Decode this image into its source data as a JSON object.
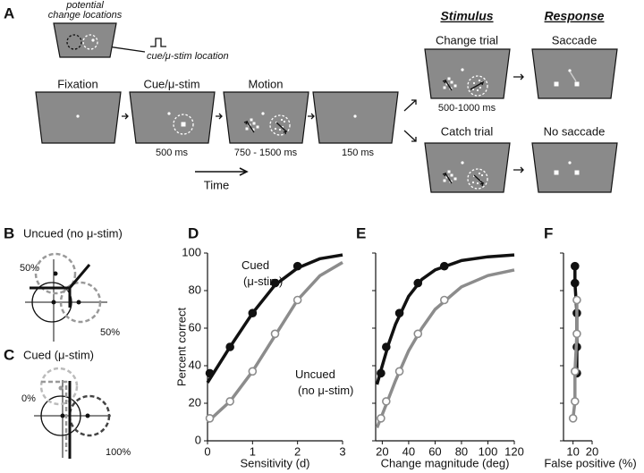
{
  "panel_a": {
    "label": "A",
    "inset_line_1": "potential",
    "inset_line_2": "change locations",
    "cue_label": "cue/μ-stim location",
    "epochs": [
      {
        "title": "Fixation"
      },
      {
        "title": "Cue/μ-stim",
        "duration": "500 ms"
      },
      {
        "title": "Motion",
        "duration": "750 - 1500 ms"
      },
      {
        "duration": "150 ms"
      }
    ],
    "time_label": "Time",
    "stimulus_header": "Stimulus",
    "response_header": "Response",
    "change_trial": {
      "stimulus": "Change trial",
      "duration": "500-1000 ms",
      "response": "Saccade"
    },
    "catch_trial": {
      "stimulus": "Catch trial",
      "response": "No saccade"
    }
  },
  "panel_b": {
    "label": "B",
    "title": "Uncued (no μ-stim)",
    "annotations": [
      "50%",
      "50%"
    ]
  },
  "panel_c": {
    "label": "C",
    "title": "Cued (μ-stim)",
    "annotations": [
      "0%",
      "100%"
    ]
  },
  "chart_data": [
    {
      "type": "line",
      "label": "D",
      "xlabel": "Sensitivity (d)",
      "ylabel": "Percent correct",
      "xlim": [
        0,
        3
      ],
      "ylim": [
        0,
        100
      ],
      "xticks": [
        0,
        1,
        2,
        3
      ],
      "yticks": [
        0,
        20,
        40,
        60,
        80,
        100
      ],
      "show_ytick_labels": true,
      "series": [
        {
          "name": "Cued (μ-stim)",
          "color": "#111111",
          "filled": true,
          "x": [
            0.05,
            0.5,
            1,
            1.5,
            2
          ],
          "values": [
            36,
            50,
            68,
            84,
            93
          ],
          "fit_x": [
            0,
            0.5,
            1,
            1.5,
            2,
            2.5,
            3
          ],
          "fit_values": [
            31,
            50,
            68,
            83,
            92,
            97,
            99
          ]
        },
        {
          "name": "Uncued (no μ-stim)",
          "color": "#8c8c8c",
          "filled": false,
          "x": [
            0.05,
            0.5,
            1,
            1.5,
            2
          ],
          "values": [
            12,
            21,
            37,
            57,
            75
          ],
          "fit_x": [
            0,
            0.5,
            1,
            1.5,
            2,
            2.5,
            3
          ],
          "fit_values": [
            10,
            21,
            37,
            56,
            75,
            88,
            95
          ]
        }
      ]
    },
    {
      "type": "line",
      "label": "E",
      "xlabel": "Change magnitude  (deg)",
      "xlim": [
        15,
        120
      ],
      "ylim": [
        0,
        100
      ],
      "xticks": [
        20,
        40,
        60,
        80,
        100,
        120
      ],
      "yticks": [
        0,
        20,
        40,
        60,
        80,
        100
      ],
      "show_ytick_labels": false,
      "series": [
        {
          "color": "#111111",
          "filled": true,
          "x": [
            19,
            23,
            33,
            47,
            67
          ],
          "values": [
            36,
            50,
            68,
            84,
            93
          ],
          "fit_x": [
            16,
            20,
            25,
            30,
            40,
            50,
            60,
            80,
            100,
            120
          ],
          "fit_values": [
            30,
            40,
            52,
            62,
            77,
            86,
            91,
            96,
            98,
            99
          ]
        },
        {
          "color": "#8c8c8c",
          "filled": false,
          "x": [
            19,
            23,
            33,
            47,
            67
          ],
          "values": [
            12,
            21,
            37,
            57,
            75
          ],
          "fit_x": [
            16,
            20,
            25,
            30,
            40,
            50,
            60,
            80,
            100,
            120
          ],
          "fit_values": [
            7,
            14,
            23,
            32,
            48,
            60,
            70,
            82,
            88,
            91
          ]
        }
      ]
    },
    {
      "type": "line",
      "label": "F",
      "xlabel": "False positive (%)",
      "xlim": [
        5,
        20
      ],
      "ylim": [
        0,
        100
      ],
      "xticks": [
        10,
        20
      ],
      "yticks": [
        0,
        20,
        40,
        60,
        80,
        100
      ],
      "show_ytick_labels": false,
      "series": [
        {
          "color": "#111111",
          "filled": true,
          "x": [
            12,
            12,
            12,
            11,
            11
          ],
          "values": [
            36,
            50,
            68,
            84,
            93
          ]
        },
        {
          "color": "#8c8c8c",
          "filled": false,
          "x": [
            10,
            11,
            11,
            12,
            12
          ],
          "values": [
            12,
            21,
            37,
            57,
            75
          ]
        }
      ]
    }
  ]
}
